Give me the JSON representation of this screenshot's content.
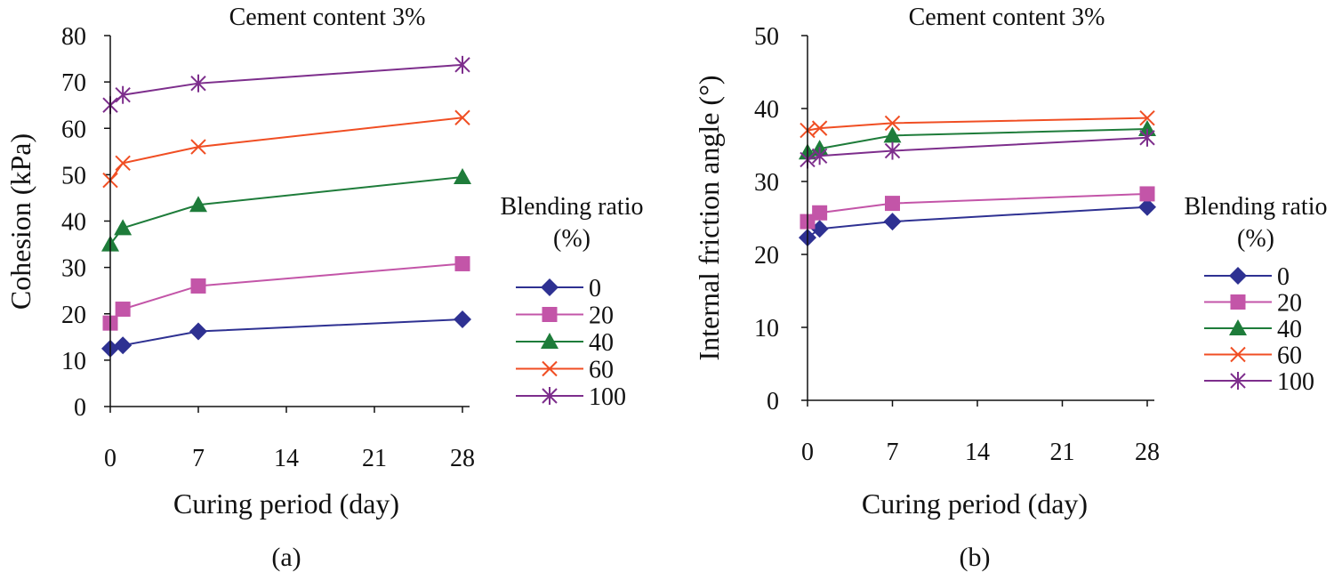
{
  "colors": {
    "s0": "#2E3192",
    "s20": "#C355A8",
    "s40": "#1E7C3A",
    "s60": "#F04E23",
    "s100": "#7D2E8C",
    "axis": "#111111"
  },
  "chart_data": [
    {
      "type": "line",
      "panel_label": "(a)",
      "title": "Cement content  3%",
      "xlabel": "Curing period (day)",
      "ylabel": "Cohesion (kPa)",
      "xlim": [
        0,
        28
      ],
      "ylim": [
        0,
        80
      ],
      "xticks": [
        "0",
        "7",
        "14",
        "21",
        "28"
      ],
      "yticks": [
        "0",
        "10",
        "20",
        "30",
        "40",
        "50",
        "60",
        "70",
        "80"
      ],
      "x": [
        0,
        1,
        7,
        28
      ],
      "legend_title": [
        "Blending ratio",
        "(%)"
      ],
      "series": [
        {
          "name": "0",
          "marker": "diamond",
          "color": "#2E3192",
          "values": [
            12.5,
            13.2,
            16.2,
            18.8
          ]
        },
        {
          "name": "20",
          "marker": "square",
          "color": "#C355A8",
          "values": [
            18,
            21,
            26,
            30.8
          ]
        },
        {
          "name": "40",
          "marker": "triangle",
          "color": "#1E7C3A",
          "values": [
            35,
            38.5,
            43.5,
            49.5
          ]
        },
        {
          "name": "60",
          "marker": "x",
          "color": "#F04E23",
          "values": [
            48.8,
            52.5,
            56,
            62.3
          ]
        },
        {
          "name": "100",
          "marker": "star",
          "color": "#7D2E8C",
          "values": [
            65,
            67.2,
            69.7,
            73.7
          ]
        }
      ]
    },
    {
      "type": "line",
      "panel_label": "(b)",
      "title": "Cement content  3%",
      "xlabel": "Curing period (day)",
      "ylabel": "Internal friction angle (°)",
      "xlim": [
        0,
        28
      ],
      "ylim": [
        0,
        50
      ],
      "xticks": [
        "0",
        "7",
        "14",
        "21",
        "28"
      ],
      "yticks": [
        "0",
        "10",
        "20",
        "30",
        "40",
        "50"
      ],
      "x": [
        0,
        1,
        7,
        28
      ],
      "legend_title": [
        "Blending ratio",
        "(%)"
      ],
      "series": [
        {
          "name": "0",
          "marker": "diamond",
          "color": "#2E3192",
          "values": [
            22.3,
            23.5,
            24.5,
            26.5
          ]
        },
        {
          "name": "20",
          "marker": "square",
          "color": "#C355A8",
          "values": [
            24.5,
            25.7,
            27,
            28.3
          ]
        },
        {
          "name": "40",
          "marker": "triangle",
          "color": "#1E7C3A",
          "values": [
            34,
            34.5,
            36.3,
            37.2
          ]
        },
        {
          "name": "60",
          "marker": "x",
          "color": "#F04E23",
          "values": [
            37,
            37.3,
            38,
            38.7
          ]
        },
        {
          "name": "100",
          "marker": "star",
          "color": "#7D2E8C",
          "values": [
            33,
            33.5,
            34.2,
            36
          ]
        }
      ]
    }
  ]
}
